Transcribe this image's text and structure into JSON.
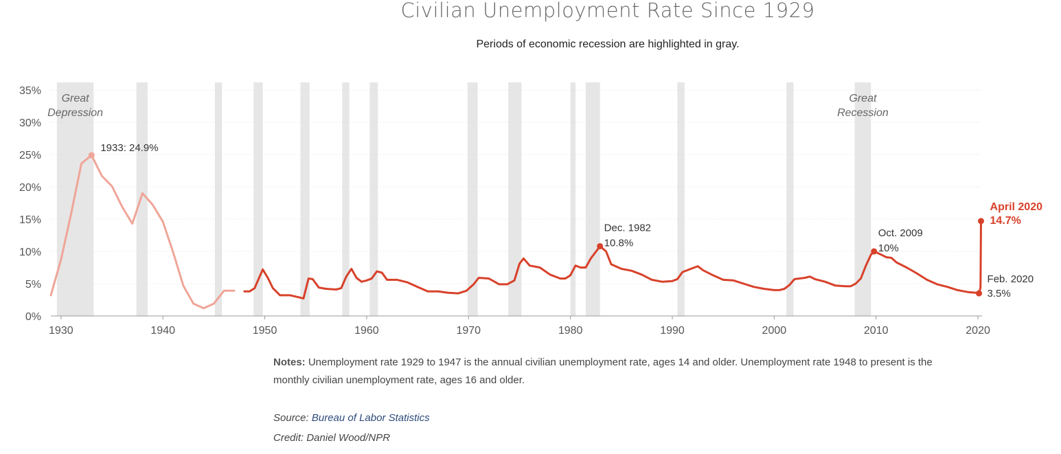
{
  "header": {
    "title": "Civilian Unemployment Rate Since 1929",
    "subtitle": "Periods of economic recession are highlighted in gray."
  },
  "footer": {
    "notes_label": "Notes:",
    "notes_text": "Unemployment rate 1929 to 1947 is the annual civilian unemployment rate, ages 14 and older. Unemployment rate 1948 to present is the monthly civilian unemployment rate, ages 16 and older.",
    "source_label": "Source:",
    "source_link": "Bureau of Labor Statistics",
    "credit": "Credit: Daniel Wood/NPR"
  },
  "colors": {
    "annual_line": "#efa598",
    "monthly_line": "#d8412a",
    "highlight_text": "#d8412a",
    "recession_band": "#e6e6e6",
    "grid": "#dddddd",
    "tick_text": "#555555"
  },
  "chart_data": {
    "type": "line",
    "title": "Civilian Unemployment Rate Since 1929",
    "subtitle": "Periods of economic recession are highlighted in gray.",
    "xlabel": "",
    "ylabel": "",
    "xlim": [
      1929,
      2020.4
    ],
    "ylim": [
      0,
      35
    ],
    "x_ticks": [
      1930,
      1940,
      1950,
      1960,
      1970,
      1980,
      1990,
      2000,
      2010,
      2020
    ],
    "y_ticks": [
      0,
      5,
      10,
      15,
      20,
      25,
      30,
      35
    ],
    "y_tick_format": "%",
    "grid": "horizontal dotted",
    "recessions": [
      [
        1929.6,
        1933.2
      ],
      [
        1937.4,
        1938.5
      ],
      [
        1945.1,
        1945.8
      ],
      [
        1948.9,
        1949.8
      ],
      [
        1953.5,
        1954.4
      ],
      [
        1957.6,
        1958.3
      ],
      [
        1960.3,
        1961.1
      ],
      [
        1969.9,
        1970.9
      ],
      [
        1973.9,
        1975.2
      ],
      [
        1980.0,
        1980.5
      ],
      [
        1981.5,
        1982.9
      ],
      [
        1990.5,
        1991.2
      ],
      [
        2001.2,
        2001.9
      ],
      [
        2007.9,
        2009.5
      ]
    ],
    "recession_labels": [
      {
        "text_line1": "Great",
        "text_line2": "Depression",
        "x": 1931.4,
        "y": 33.2
      },
      {
        "text_line1": "Great",
        "text_line2": "Recession",
        "x": 2008.7,
        "y": 33.2
      }
    ],
    "series": [
      {
        "x": [
          1929,
          1930,
          1931,
          1932,
          1933,
          1934,
          1935,
          1936,
          1937,
          1938,
          1939,
          1940,
          1941,
          1942,
          1943,
          1944,
          1945,
          1946,
          1947
        ],
        "y": [
          3.2,
          8.7,
          15.9,
          23.6,
          24.9,
          21.7,
          20.1,
          16.9,
          14.3,
          19.0,
          17.2,
          14.6,
          9.9,
          4.7,
          1.9,
          1.2,
          1.9,
          3.9,
          3.9
        ]
      },
      {
        "x": [
          1948.0,
          1948.5,
          1949.0,
          1949.5,
          1949.8,
          1950.3,
          1950.8,
          1951.5,
          1952.5,
          1953.3,
          1953.8,
          1954.3,
          1954.7,
          1955.3,
          1956.0,
          1957.0,
          1957.5,
          1958.0,
          1958.5,
          1959.0,
          1959.5,
          1960.0,
          1960.5,
          1961.0,
          1961.5,
          1962.0,
          1963.0,
          1964.0,
          1965.0,
          1966.0,
          1967.0,
          1968.0,
          1969.0,
          1969.8,
          1970.5,
          1971.0,
          1972.0,
          1973.0,
          1973.8,
          1974.5,
          1975.0,
          1975.4,
          1976.0,
          1977.0,
          1978.0,
          1979.0,
          1979.5,
          1980.0,
          1980.5,
          1981.0,
          1981.5,
          1982.0,
          1982.9,
          1983.5,
          1984.0,
          1985.0,
          1986.0,
          1987.0,
          1988.0,
          1989.0,
          1990.0,
          1990.5,
          1991.0,
          1992.0,
          1992.5,
          1993.0,
          1994.0,
          1995.0,
          1996.0,
          1997.0,
          1998.0,
          1999.0,
          2000.0,
          2000.5,
          2001.0,
          2001.5,
          2002.0,
          2003.0,
          2003.5,
          2004.0,
          2005.0,
          2006.0,
          2007.0,
          2007.5,
          2008.0,
          2008.5,
          2009.0,
          2009.5,
          2009.8,
          2010.5,
          2011.0,
          2011.5,
          2012.0,
          2013.0,
          2014.0,
          2015.0,
          2016.0,
          2017.0,
          2018.0,
          2019.0,
          2019.8,
          2020.1,
          2020.25,
          2020.3
        ],
        "y": [
          3.8,
          3.8,
          4.3,
          6.1,
          7.2,
          5.9,
          4.3,
          3.2,
          3.2,
          2.9,
          2.7,
          5.8,
          5.7,
          4.4,
          4.2,
          4.1,
          4.3,
          6.1,
          7.3,
          5.9,
          5.3,
          5.5,
          5.8,
          6.9,
          6.7,
          5.6,
          5.6,
          5.2,
          4.5,
          3.8,
          3.8,
          3.6,
          3.5,
          3.9,
          4.9,
          5.9,
          5.8,
          4.9,
          4.9,
          5.5,
          8.1,
          8.9,
          7.8,
          7.5,
          6.4,
          5.8,
          5.8,
          6.3,
          7.8,
          7.5,
          7.5,
          8.9,
          10.8,
          10.0,
          8.0,
          7.3,
          7.0,
          6.4,
          5.6,
          5.3,
          5.4,
          5.7,
          6.8,
          7.4,
          7.7,
          7.1,
          6.3,
          5.6,
          5.5,
          5.0,
          4.5,
          4.2,
          4.0,
          4.0,
          4.2,
          4.8,
          5.7,
          5.9,
          6.1,
          5.7,
          5.3,
          4.7,
          4.6,
          4.6,
          5.0,
          5.8,
          7.8,
          9.5,
          10.0,
          9.5,
          9.1,
          9.0,
          8.3,
          7.5,
          6.6,
          5.6,
          4.9,
          4.5,
          4.0,
          3.7,
          3.6,
          3.5,
          4.4,
          14.7
        ]
      }
    ],
    "annotations": [
      {
        "text": "1933: 24.9%",
        "x": 1933,
        "y": 24.9
      },
      {
        "text_line1": "Dec. 1982",
        "text_line2": "10.8%",
        "x": 1982.9,
        "y": 10.8
      },
      {
        "text_line1": "Oct. 2009",
        "text_line2": "10%",
        "x": 2009.8,
        "y": 10.0
      },
      {
        "text_line1": "Feb. 2020",
        "text_line2": "3.5%",
        "x": 2020.1,
        "y": 3.5
      },
      {
        "text_line1": "April 2020",
        "text_line2": "14.7%",
        "x": 2020.3,
        "y": 14.7
      }
    ]
  }
}
